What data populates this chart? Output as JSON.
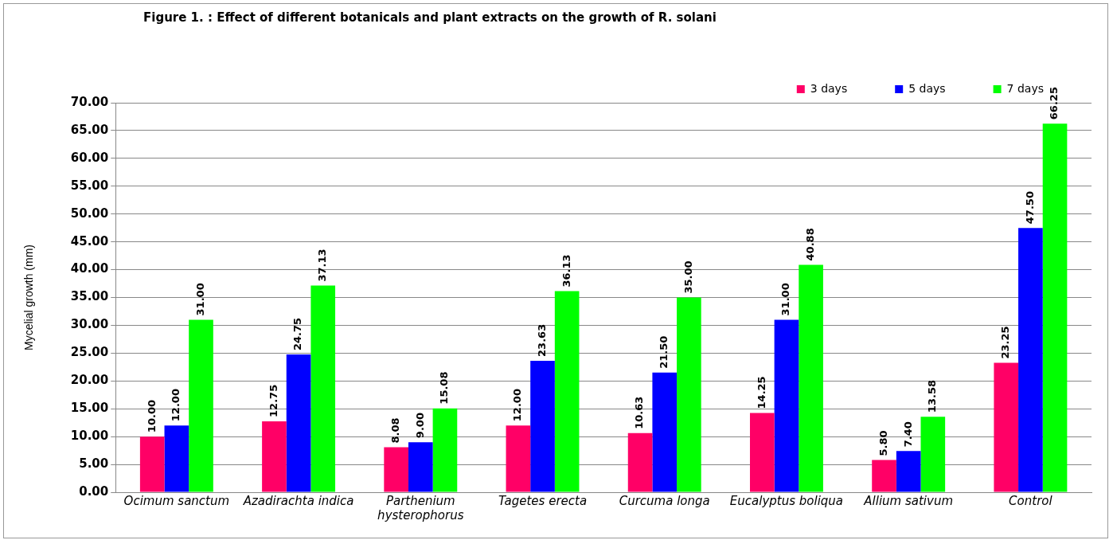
{
  "chart_data": {
    "type": "bar",
    "title": "Figure 1. : Effect of different botanicals and plant extracts on the growth of R. solani",
    "ylabel": "Mycelial growth (mm)",
    "categories": [
      "Ocimum sanctum",
      "Azadirachta indica",
      "Parthenium hysterophorus",
      "Tagetes erecta",
      "Curcuma longa",
      "Eucalyptus boliqua",
      "Allium sativum",
      "Control"
    ],
    "series": [
      {
        "name": "3 days",
        "color": "#ff0066",
        "values": [
          10.0,
          12.75,
          8.08,
          12.0,
          10.63,
          14.25,
          5.8,
          23.25
        ],
        "value_labels": [
          "10.00",
          "12.75",
          "8.08",
          "12.00",
          "10.63",
          "14.25",
          "5.80",
          "23.25"
        ]
      },
      {
        "name": "5 days",
        "color": "#0000ff",
        "values": [
          12.0,
          24.75,
          9.0,
          23.63,
          21.5,
          31.0,
          7.4,
          47.5
        ],
        "value_labels": [
          "12.00",
          "24.75",
          "9.00",
          "23.63",
          "21.50",
          "31.00",
          "7.40",
          "47.50"
        ]
      },
      {
        "name": "7 days",
        "color": "#00ff00",
        "values": [
          31.0,
          37.13,
          15.08,
          36.13,
          35.0,
          40.88,
          13.58,
          66.25
        ],
        "value_labels": [
          "31.00",
          "37.13",
          "15.08",
          "36.13",
          "35.00",
          "40.88",
          "13.58",
          "66.25"
        ]
      }
    ],
    "ylim": [
      0,
      70
    ],
    "yticks": [
      {
        "value": 0,
        "label": "0.00"
      },
      {
        "value": 5,
        "label": "5.00"
      },
      {
        "value": 10,
        "label": "10.00"
      },
      {
        "value": 15,
        "label": "15.00"
      },
      {
        "value": 20,
        "label": "20.00"
      },
      {
        "value": 25,
        "label": "25.00"
      },
      {
        "value": 30,
        "label": "30.00"
      },
      {
        "value": 35,
        "label": "35.00"
      },
      {
        "value": 40,
        "label": "40.00"
      },
      {
        "value": 45,
        "label": "45.00"
      },
      {
        "value": 50,
        "label": "50.00"
      },
      {
        "value": 55,
        "label": "55.00"
      },
      {
        "value": 60,
        "label": "60.00"
      },
      {
        "value": 65,
        "label": "65.00"
      },
      {
        "value": 70,
        "label": "70.00"
      }
    ],
    "grid": "y",
    "legend": "top right"
  }
}
